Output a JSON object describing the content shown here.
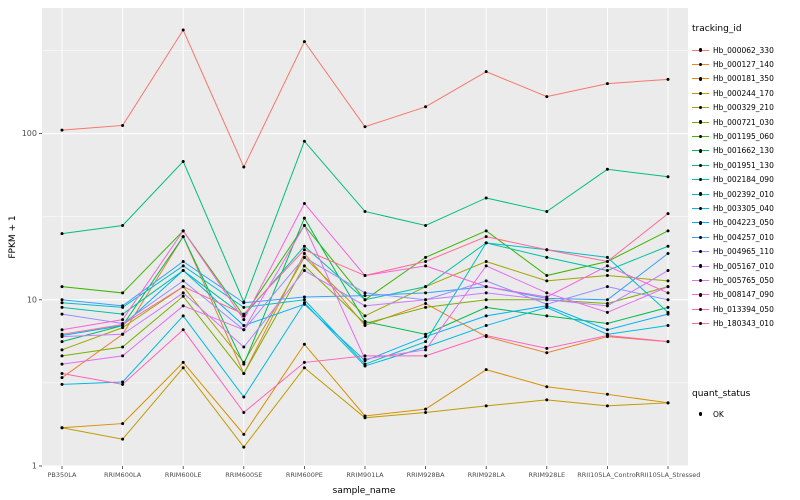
{
  "chart_data": {
    "type": "line",
    "title": "",
    "xlabel": "sample_name",
    "ylabel": "FPKM + 1",
    "y_scale": "log10",
    "y_ticks": [
      1,
      10,
      100
    ],
    "ylim": [
      1,
      570
    ],
    "grid": "on",
    "legend_position": "right",
    "panel_bg": "#EBEBEB",
    "grid_color": "#FFFFFF",
    "tick_label_color": "#4D4D4D",
    "point_color": "#000000",
    "categories": [
      "PB350LA",
      "RRIM600LA",
      "RRIM600LE",
      "RRIM600SE",
      "RRIM600PE",
      "RRIM901LA",
      "RRIM928BA",
      "RRIM928LA",
      "RRIM928LE",
      "RRII105LA_Control",
      "RRII105LA_Stressed"
    ],
    "legend": {
      "series_title": "tracking_id",
      "status_title": "quant_status",
      "status_items": [
        {
          "label": "OK",
          "marker": "point"
        }
      ]
    },
    "series": [
      {
        "name": "Hb_000062_330",
        "color": "#F8766D",
        "values": [
          105,
          112,
          420,
          63,
          358,
          110,
          145,
          236,
          167,
          200,
          212
        ]
      },
      {
        "name": "Hb_000127_140",
        "color": "#EA8331",
        "values": [
          3.4,
          6.2,
          24,
          3.6,
          19,
          7,
          9.5,
          6,
          4.8,
          6,
          5.6
        ]
      },
      {
        "name": "Hb_000181_350",
        "color": "#D89000",
        "values": [
          1.7,
          1.8,
          4.2,
          1.55,
          5.4,
          2.0,
          2.2,
          3.8,
          3.0,
          2.7,
          2.4
        ]
      },
      {
        "name": "Hb_000244_170",
        "color": "#C09B00",
        "values": [
          1.7,
          1.45,
          3.9,
          1.3,
          3.9,
          1.95,
          2.1,
          2.3,
          2.5,
          2.3,
          2.4
        ]
      },
      {
        "name": "Hb_000329_210",
        "color": "#A3A500",
        "values": [
          5,
          6.8,
          12,
          4.2,
          18,
          8,
          12,
          17,
          13,
          14,
          13
        ]
      },
      {
        "name": "Hb_000721_030",
        "color": "#7CAE00",
        "values": [
          4.6,
          5.2,
          10.5,
          3.6,
          16,
          7.2,
          9,
          10,
          10,
          9.5,
          12
        ]
      },
      {
        "name": "Hb_001195_060",
        "color": "#39B600",
        "values": [
          12,
          11,
          26,
          8,
          28,
          10,
          18,
          26,
          14,
          17,
          26
        ]
      },
      {
        "name": "Hb_001662_130",
        "color": "#00BB4E",
        "values": [
          5.6,
          7,
          24,
          4.1,
          31,
          7.4,
          6.2,
          9,
          8,
          7.2,
          9
        ]
      },
      {
        "name": "Hb_001951_130",
        "color": "#00BF7D",
        "values": [
          25,
          28,
          68,
          9.7,
          90,
          34,
          28,
          41,
          34,
          61,
          55
        ]
      },
      {
        "name": "Hb_002184_090",
        "color": "#00C1A3",
        "values": [
          9,
          8.2,
          15,
          8,
          21,
          10,
          12,
          22,
          18,
          15,
          21
        ]
      },
      {
        "name": "Hb_002392_010",
        "color": "#00BFC4",
        "values": [
          9.6,
          9,
          16,
          9,
          10,
          4.1,
          5.6,
          22,
          20,
          18,
          8.4
        ]
      },
      {
        "name": "Hb_003305_040",
        "color": "#00BAE0",
        "values": [
          3.1,
          3.2,
          8,
          2.6,
          9.6,
          4,
          5.2,
          7,
          9,
          6.2,
          7
        ]
      },
      {
        "name": "Hb_004223_050",
        "color": "#00B0F6",
        "values": [
          6.1,
          7,
          15,
          7,
          9.4,
          4.3,
          6,
          8,
          9.2,
          6.6,
          8.2
        ]
      },
      {
        "name": "Hb_004257_010",
        "color": "#35A2FF",
        "values": [
          10,
          9.2,
          17,
          9.6,
          10.4,
          10.6,
          11,
          12,
          10.2,
          10,
          19
        ]
      },
      {
        "name": "Hb_004965_110",
        "color": "#9590FF",
        "values": [
          8.2,
          7.2,
          13,
          6.6,
          18,
          11,
          10,
          13,
          9.4,
          12,
          10
        ]
      },
      {
        "name": "Hb_005167_010",
        "color": "#C77CFF",
        "values": [
          6,
          6.2,
          11,
          5.2,
          15,
          9.2,
          10,
          11,
          10,
          9.2,
          15
        ]
      },
      {
        "name": "Hb_005765_050",
        "color": "#E76BF3",
        "values": [
          4.1,
          4.6,
          9.2,
          6.6,
          28,
          4.4,
          5,
          16,
          11,
          8.4,
          12
        ]
      },
      {
        "name": "Hb_008147_090",
        "color": "#FA62DB",
        "values": [
          6.6,
          7.6,
          26,
          7.6,
          38,
          14,
          16,
          12,
          10.4,
          16,
          11
        ]
      },
      {
        "name": "Hb_013394_050",
        "color": "#FF62BC",
        "values": [
          3.6,
          3.1,
          6.6,
          2.1,
          4.2,
          4.6,
          4.6,
          6.1,
          5.1,
          6.1,
          5.6
        ]
      },
      {
        "name": "Hb_180343_010",
        "color": "#FF6A98",
        "values": [
          6.2,
          7.1,
          12,
          8.2,
          20,
          14,
          17,
          24,
          20,
          17,
          33
        ]
      }
    ]
  }
}
